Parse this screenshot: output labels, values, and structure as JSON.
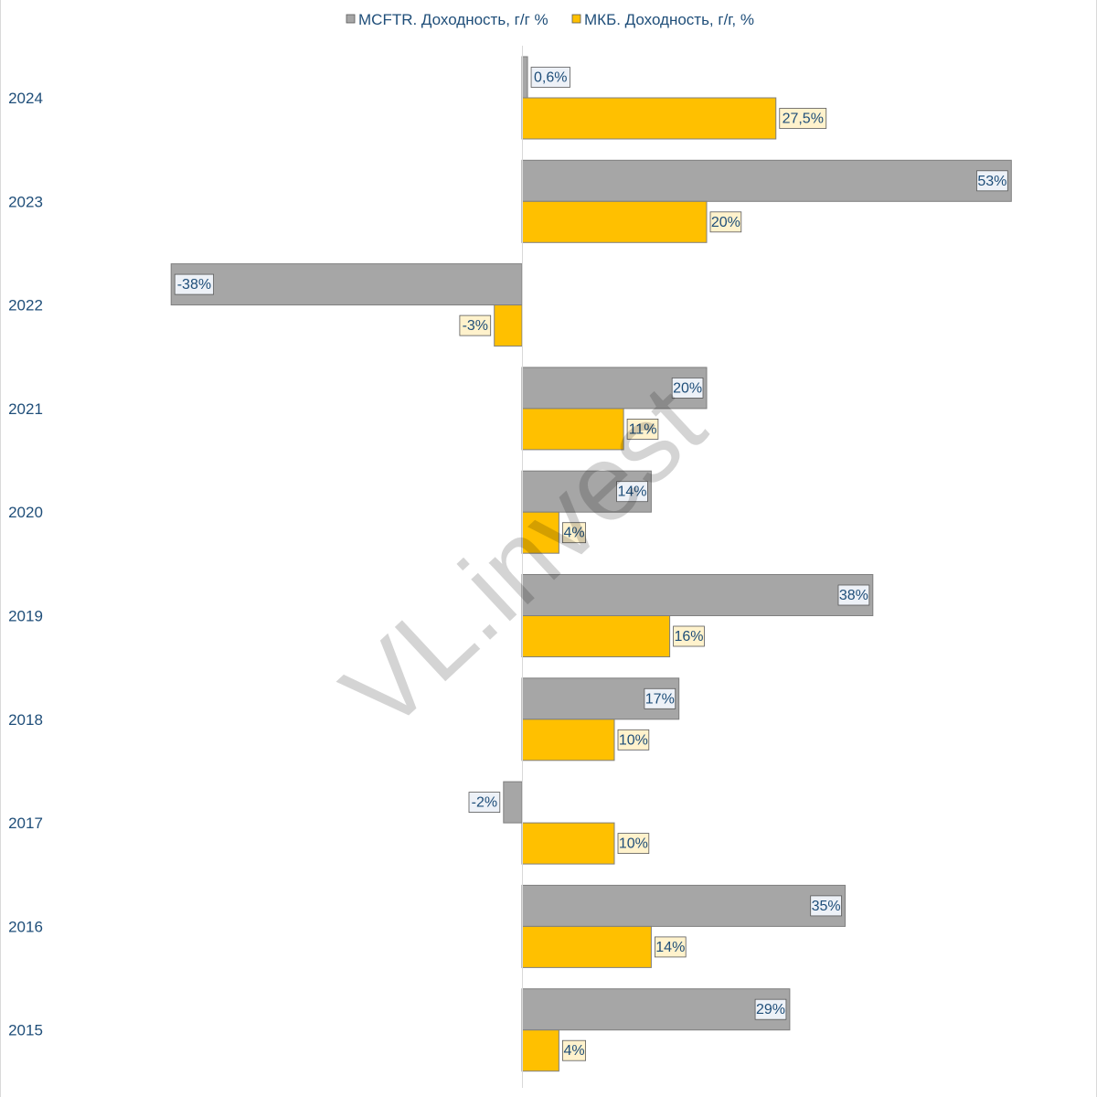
{
  "watermark": "VL.invest",
  "chart_data": {
    "type": "bar",
    "orientation": "horizontal",
    "categories": [
      "2024",
      "2023",
      "2022",
      "2021",
      "2020",
      "2019",
      "2018",
      "2017",
      "2016",
      "2015"
    ],
    "series": [
      {
        "name": "MCFTR. Доходность, г/г %",
        "color": "#a6a6a6",
        "label_fill": "#edf1f7",
        "values": [
          0.6,
          53,
          -38,
          20,
          14,
          38,
          17,
          -2,
          35,
          29
        ],
        "labels": [
          "0,6%",
          "53%",
          "-38%",
          "20%",
          "14%",
          "38%",
          "17%",
          "-2%",
          "35%",
          "29%"
        ]
      },
      {
        "name": "МКБ. Доходность, г/г, %",
        "color": "#ffc000",
        "label_fill": "#fff2cc",
        "values": [
          27.5,
          20,
          -3,
          11,
          4,
          16,
          10,
          10,
          14,
          4
        ],
        "labels": [
          "27,5%",
          "20%",
          "-3%",
          "11%",
          "4%",
          "16%",
          "10%",
          "10%",
          "14%",
          "4%"
        ]
      }
    ],
    "xlim": [
      -56,
      61
    ],
    "legend_position": "top-center",
    "grid": false
  }
}
